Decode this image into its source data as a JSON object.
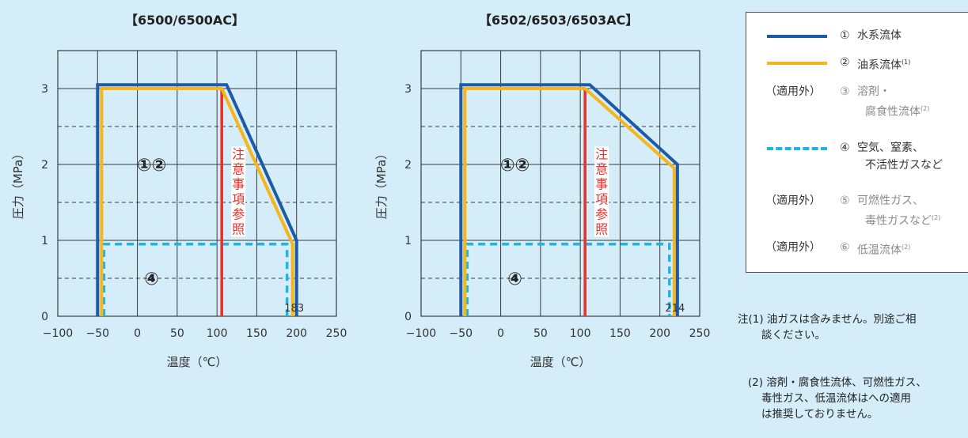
{
  "colors": {
    "water": "#1d5aa8",
    "oil": "#f5b51b",
    "air": "#1fb5e2",
    "caution": "#e8302a",
    "grid": "#3b3b3b",
    "background": "#d4edf8"
  },
  "chart_data": [
    {
      "type": "line",
      "title": "【6500/6500AC】",
      "xlabel": "温度（℃）",
      "ylabel": "圧力（MPa）",
      "xlim": [
        -100,
        250
      ],
      "ylim": [
        0,
        3.5
      ],
      "x_ticks": [
        "−100",
        "−50",
        "0",
        "50",
        "100",
        "150",
        "200",
        "250"
      ],
      "y_ticks": [
        "0",
        "1",
        "2",
        "3"
      ],
      "grid": true,
      "series": [
        {
          "key": "water",
          "points": [
            [
              -50,
              0
            ],
            [
              -50,
              3.05
            ],
            [
              112,
              3.05
            ],
            [
              200,
              1.0
            ],
            [
              200,
              0
            ]
          ]
        },
        {
          "key": "oil",
          "points": [
            [
              -45,
              0
            ],
            [
              -45,
              3.0
            ],
            [
              106,
              3.0
            ],
            [
              195,
              0.95
            ],
            [
              195,
              0
            ]
          ]
        },
        {
          "key": "air",
          "points": [
            [
              -42,
              0
            ],
            [
              -42,
              0.95
            ],
            [
              188,
              0.95
            ],
            [
              188,
              0
            ]
          ]
        },
        {
          "key": "caution",
          "points": [
            [
              106,
              0
            ],
            [
              106,
              3.0
            ]
          ]
        }
      ],
      "annotations": {
        "region_12": "①②",
        "region_4": "④",
        "caution_text": [
          "注",
          "意",
          "事",
          "項",
          "参",
          "照"
        ],
        "limit_label": "183"
      }
    },
    {
      "type": "line",
      "title": "【6502/6503/6503AC】",
      "xlabel": "温度（℃）",
      "ylabel": "圧力（MPa）",
      "xlim": [
        -100,
        250
      ],
      "ylim": [
        0,
        3.5
      ],
      "x_ticks": [
        "−100",
        "−50",
        "0",
        "50",
        "100",
        "150",
        "200",
        "250"
      ],
      "y_ticks": [
        "0",
        "1",
        "2",
        "3"
      ],
      "grid": true,
      "series": [
        {
          "key": "water",
          "points": [
            [
              -50,
              0
            ],
            [
              -50,
              3.05
            ],
            [
              112,
              3.05
            ],
            [
              222,
              2.0
            ],
            [
              222,
              0
            ]
          ]
        },
        {
          "key": "oil",
          "points": [
            [
              -45,
              0
            ],
            [
              -45,
              3.0
            ],
            [
              106,
              3.0
            ],
            [
              218,
              1.95
            ],
            [
              218,
              0
            ]
          ]
        },
        {
          "key": "air",
          "points": [
            [
              -42,
              0
            ],
            [
              -42,
              0.95
            ],
            [
              212,
              0.95
            ],
            [
              212,
              0
            ]
          ]
        },
        {
          "key": "caution",
          "points": [
            [
              106,
              0
            ],
            [
              106,
              3.0
            ]
          ]
        }
      ],
      "annotations": {
        "region_12": "①②",
        "region_4": "④",
        "caution_text": [
          "注",
          "意",
          "事",
          "項",
          "参",
          "照"
        ],
        "limit_label": "214"
      }
    }
  ],
  "legend": {
    "items": [
      {
        "prefix": "",
        "num": "①",
        "label": "水系流体",
        "sup": "",
        "style": "water",
        "muted": false
      },
      {
        "prefix": "",
        "num": "②",
        "label": "油系流体",
        "sup": "(1)",
        "style": "oil",
        "muted": false
      },
      {
        "prefix": "（適用外）",
        "num": "③",
        "label": "溶剤・\n腐食性流体",
        "sup": "(2)",
        "style": "none",
        "muted": true
      },
      {
        "prefix": "",
        "num": "④",
        "label": "空気、窒素、\n不活性ガスなど",
        "sup": "",
        "style": "air",
        "muted": false
      },
      {
        "prefix": "（適用外）",
        "num": "⑤",
        "label": "可燃性ガス、\n毒性ガスなど",
        "sup": "(2)",
        "style": "none",
        "muted": true
      },
      {
        "prefix": "（適用外）",
        "num": "⑥",
        "label": "低温流体",
        "sup": "(2)",
        "style": "none",
        "muted": true
      }
    ]
  },
  "notes": {
    "note1": "注(1) 油ガスは含みません。別途ご相\n       談ください。",
    "note2": "   (2) 溶剤・腐食性流体、可燃性ガス、\n       毒性ガス、低温流体はへの適用\n       は推奨しておりません。"
  }
}
